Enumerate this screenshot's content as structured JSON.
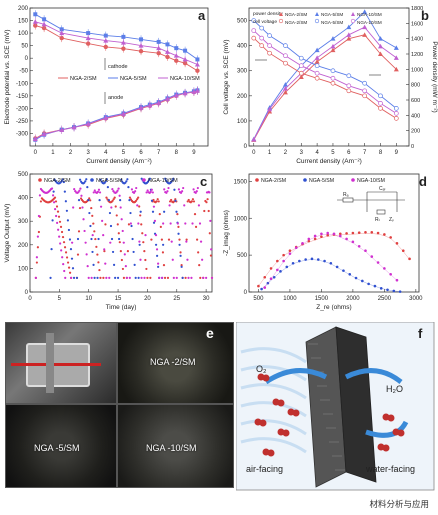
{
  "chart_data": [
    {
      "panel": "a",
      "type": "line",
      "xlabel": "Current density (Am⁻²)",
      "ylabel": "Electrode potential vs. SCE (mV)",
      "xlim": [
        -0.3,
        9.8
      ],
      "ylim": [
        -350,
        200
      ],
      "xticks": [
        0,
        1,
        2,
        3,
        4,
        5,
        6,
        7,
        8,
        9
      ],
      "yticks": [
        -300,
        -250,
        -200,
        -150,
        -100,
        -50,
        0,
        50,
        100,
        150,
        200
      ],
      "annotations": [
        "cathode",
        "anode"
      ],
      "series": [
        {
          "name": "NGA-2/SM",
          "color": "#e06060",
          "group": "cathode",
          "x": [
            0,
            0.5,
            1.5,
            3,
            4,
            5,
            6,
            7,
            7.5,
            8,
            8.5,
            9.2
          ],
          "y": [
            130,
            120,
            80,
            58,
            45,
            38,
            28,
            20,
            5,
            -10,
            -20,
            -50
          ]
        },
        {
          "name": "NGA-5/SM",
          "color": "#5b7ee8",
          "group": "cathode",
          "x": [
            0,
            0.5,
            1.5,
            3,
            4,
            5,
            6,
            7,
            7.5,
            8,
            8.5,
            9.2
          ],
          "y": [
            175,
            155,
            115,
            100,
            90,
            85,
            75,
            65,
            55,
            40,
            30,
            -5
          ]
        },
        {
          "name": "NGA-10/SM",
          "color": "#c060d0",
          "group": "cathode",
          "x": [
            0,
            0.5,
            1.5,
            3,
            4,
            5,
            6,
            7,
            7.5,
            8,
            8.5,
            9.2
          ],
          "y": [
            145,
            135,
            100,
            80,
            70,
            62,
            50,
            40,
            25,
            10,
            -5,
            -25
          ]
        },
        {
          "name": "NGA-2/SM",
          "color": "#e06060",
          "group": "anode",
          "x": [
            0,
            0.5,
            1.5,
            2.2,
            3,
            4,
            5,
            6,
            6.5,
            7,
            7.5,
            8,
            8.5,
            9,
            9.2
          ],
          "y": [
            -320,
            -300,
            -285,
            -275,
            -265,
            -240,
            -225,
            -200,
            -190,
            -180,
            -165,
            -150,
            -140,
            -135,
            -130
          ]
        },
        {
          "name": "NGA-5/SM",
          "color": "#5b7ee8",
          "group": "anode",
          "x": [
            0,
            0.5,
            1.5,
            2.2,
            3,
            4,
            5,
            6,
            6.5,
            7,
            7.5,
            8,
            8.5,
            9,
            9.2
          ],
          "y": [
            -325,
            -305,
            -285,
            -275,
            -260,
            -235,
            -220,
            -195,
            -185,
            -175,
            -160,
            -145,
            -138,
            -132,
            -128
          ]
        },
        {
          "name": "NGA-10/SM",
          "color": "#c060d0",
          "group": "anode",
          "x": [
            0,
            0.5,
            1.5,
            2.2,
            3,
            4,
            5,
            6,
            6.5,
            7,
            7.5,
            8,
            8.5,
            9,
            9.2
          ],
          "y": [
            -322,
            -302,
            -286,
            -276,
            -262,
            -238,
            -222,
            -198,
            -188,
            -178,
            -162,
            -148,
            -140,
            -134,
            -130
          ]
        }
      ]
    },
    {
      "panel": "b",
      "type": "line",
      "xlabel": "Current density (Am⁻²)",
      "ylabel": "Cell voltage vs. SCE (mV)",
      "ylabel_right": "Power density (mW m⁻²)",
      "xlim": [
        -0.3,
        9.8
      ],
      "ylim": [
        0,
        550
      ],
      "ylim_right": [
        0,
        1800
      ],
      "xticks": [
        0,
        1,
        2,
        3,
        4,
        5,
        6,
        7,
        8,
        9
      ],
      "yticks": [
        0,
        100,
        200,
        300,
        400,
        500
      ],
      "yticks_right": [
        0,
        200,
        400,
        600,
        800,
        1000,
        1200,
        1400,
        1600,
        1800
      ],
      "legend_rows": [
        "power density",
        "cell voltage"
      ],
      "series": [
        {
          "name": "NGA-2/SM",
          "kind": "power",
          "color": "#e06060",
          "x": [
            0,
            1,
            2,
            3,
            4,
            5,
            6,
            7,
            8,
            9
          ],
          "y": [
            80,
            450,
            700,
            900,
            1100,
            1250,
            1400,
            1450,
            1200,
            1000
          ]
        },
        {
          "name": "NGA-5/SM",
          "kind": "power",
          "color": "#5b7ee8",
          "x": [
            0,
            1,
            2,
            3,
            4,
            5,
            6,
            7,
            8,
            9
          ],
          "y": [
            90,
            500,
            800,
            1050,
            1250,
            1400,
            1550,
            1750,
            1400,
            1280
          ]
        },
        {
          "name": "NGA-10/SM",
          "kind": "power",
          "color": "#c060d0",
          "x": [
            0,
            1,
            2,
            3,
            4,
            5,
            6,
            7,
            8,
            9
          ],
          "y": [
            85,
            480,
            750,
            950,
            1150,
            1300,
            1450,
            1550,
            1300,
            1150
          ]
        },
        {
          "name": "NGA-2/SM",
          "kind": "voltage",
          "color": "#e06060",
          "x": [
            0,
            0.5,
            1,
            2,
            3,
            4,
            5,
            6,
            7,
            8,
            9
          ],
          "y": [
            430,
            400,
            370,
            330,
            290,
            270,
            250,
            220,
            200,
            150,
            110
          ]
        },
        {
          "name": "NGA-5/SM",
          "kind": "voltage",
          "color": "#5b7ee8",
          "x": [
            0,
            0.5,
            1,
            2,
            3,
            4,
            5,
            6,
            7,
            8,
            9
          ],
          "y": [
            500,
            470,
            440,
            400,
            350,
            320,
            300,
            280,
            250,
            200,
            150
          ]
        },
        {
          "name": "NGA-10/SM",
          "kind": "voltage",
          "color": "#c060d0",
          "x": [
            0,
            0.5,
            1,
            2,
            3,
            4,
            5,
            6,
            7,
            8,
            9
          ],
          "y": [
            460,
            430,
            400,
            360,
            320,
            290,
            270,
            240,
            220,
            170,
            130
          ]
        }
      ]
    },
    {
      "panel": "c",
      "type": "scatter",
      "xlabel": "Time (day)",
      "ylabel": "Voltage Output (mV)",
      "xlim": [
        0,
        31
      ],
      "ylim": [
        0,
        500
      ],
      "xticks": [
        0,
        5,
        10,
        15,
        20,
        25,
        30
      ],
      "yticks": [
        0,
        100,
        200,
        300,
        400,
        500
      ],
      "series": [
        {
          "name": "NGA-2/SM",
          "color": "#e04040",
          "cycles": [
            [
              1,
              7
            ],
            [
              8,
              12
            ],
            [
              12.5,
              16
            ],
            [
              16.5,
              20
            ],
            [
              20.5,
              23
            ],
            [
              23.5,
              26
            ],
            [
              26.5,
              29
            ],
            [
              29.5,
              31
            ]
          ],
          "peak": 400,
          "base": 60
        },
        {
          "name": "NGA-5/SM",
          "color": "#3050d0",
          "cycles": [
            [
              3.5,
              7.5
            ],
            [
              8,
              11
            ],
            [
              11.5,
              14.5
            ],
            [
              15,
              18
            ],
            [
              18.5,
              22
            ],
            [
              22.5,
              26
            ]
          ],
          "peak": 480,
          "base": 60
        },
        {
          "name": "NGA-10/SM",
          "color": "#d030d0",
          "cycles": [
            [
              1,
              6
            ],
            [
              7,
              10
            ],
            [
              10.5,
              13
            ],
            [
              13.5,
              16.5
            ],
            [
              17,
              19
            ],
            [
              19.5,
              22
            ],
            [
              22.5,
              24.5
            ],
            [
              25,
              27
            ],
            [
              27.5,
              29.5
            ],
            [
              30,
              31
            ]
          ],
          "peak": 440,
          "base": 60
        }
      ]
    },
    {
      "panel": "d",
      "type": "scatter",
      "xlabel": "Z_re (ohms)",
      "ylabel": "-Z_imag (ohms)",
      "xlim": [
        350,
        3050
      ],
      "ylim": [
        0,
        1600
      ],
      "xticks": [
        500,
        1000,
        1500,
        2000,
        2500,
        3000
      ],
      "yticks": [
        0,
        500,
        1000,
        1500
      ],
      "annotations": [
        "Rₐ",
        "Cₐₗ",
        "Rₜ",
        "Zᵥ"
      ],
      "series": [
        {
          "name": "NGA-2/SM",
          "color": "#e04040",
          "x": [
            500,
            600,
            700,
            800,
            900,
            1000,
            1100,
            1200,
            1300,
            1400,
            1500,
            1600,
            1700,
            1800,
            1900,
            2000,
            2100,
            2200,
            2300,
            2400,
            2500,
            2600,
            2700,
            2800,
            2900
          ],
          "y": [
            80,
            200,
            320,
            420,
            500,
            560,
            610,
            650,
            690,
            720,
            750,
            770,
            780,
            790,
            795,
            800,
            805,
            810,
            810,
            800,
            780,
            740,
            660,
            560,
            450
          ]
        },
        {
          "name": "NGA-5/SM",
          "color": "#3050d0",
          "x": [
            550,
            650,
            750,
            850,
            950,
            1050,
            1150,
            1250,
            1350,
            1450,
            1550,
            1650,
            1750,
            1850,
            1950,
            2050,
            2150,
            2250,
            2350,
            2450,
            2550,
            2650,
            2750
          ],
          "y": [
            40,
            120,
            200,
            280,
            340,
            390,
            420,
            440,
            450,
            440,
            420,
            390,
            340,
            290,
            240,
            190,
            150,
            110,
            80,
            50,
            30,
            15,
            5
          ]
        },
        {
          "name": "NGA-10/SM",
          "color": "#d030d0",
          "x": [
            600,
            700,
            800,
            900,
            1000,
            1100,
            1200,
            1300,
            1400,
            1500,
            1600,
            1700,
            1800,
            1900,
            2000,
            2100,
            2200,
            2300,
            2400,
            2500,
            2600,
            2700
          ],
          "y": [
            60,
            180,
            300,
            420,
            520,
            600,
            660,
            720,
            760,
            790,
            800,
            790,
            760,
            720,
            680,
            620,
            560,
            480,
            400,
            320,
            240,
            160
          ]
        }
      ]
    }
  ],
  "panel_labels": {
    "a": "a",
    "b": "b",
    "c": "c",
    "d": "d",
    "e": "e",
    "f": "f"
  },
  "photos": {
    "e_labels": [
      "NGA -2/SM",
      "NGA -5/SM",
      "NGA -10/SM"
    ]
  },
  "diagram": {
    "labels": {
      "o2": "O₂",
      "h2o": "H₂O",
      "air": "air-facing",
      "water": "water-facing"
    }
  },
  "watermark": "材料分析与应用",
  "colors": {
    "ng2": "#e04040",
    "ng5": "#3050d0",
    "ng10": "#d030d0"
  }
}
